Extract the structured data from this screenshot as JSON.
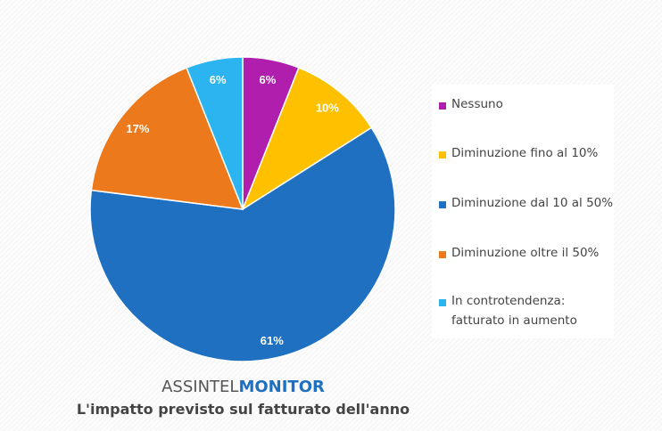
{
  "chart_data": {
    "type": "pie",
    "title": "L'impatto previsto sul fatturato dell'anno",
    "brand": {
      "prefix": "ASSINTEL",
      "suffix": "MONITOR"
    },
    "slices": [
      {
        "label": "Nessuno",
        "value": 6,
        "display": "6%",
        "color": "#B01EAD"
      },
      {
        "label": "Diminuzione fino al 10%",
        "value": 10,
        "display": "10%",
        "color": "#FFC000"
      },
      {
        "label": "Diminuzione dal 10 al 50%",
        "value": 61,
        "display": "61%",
        "color": "#1F70C1"
      },
      {
        "label": "Diminuzione oltre il 50%",
        "value": 17,
        "display": "17%",
        "color": "#EC7A1C"
      },
      {
        "label": "In controtendenza: fatturato in aumento",
        "value": 6,
        "display": "6%",
        "color": "#2BB4EF"
      }
    ],
    "legend_position": "right"
  }
}
